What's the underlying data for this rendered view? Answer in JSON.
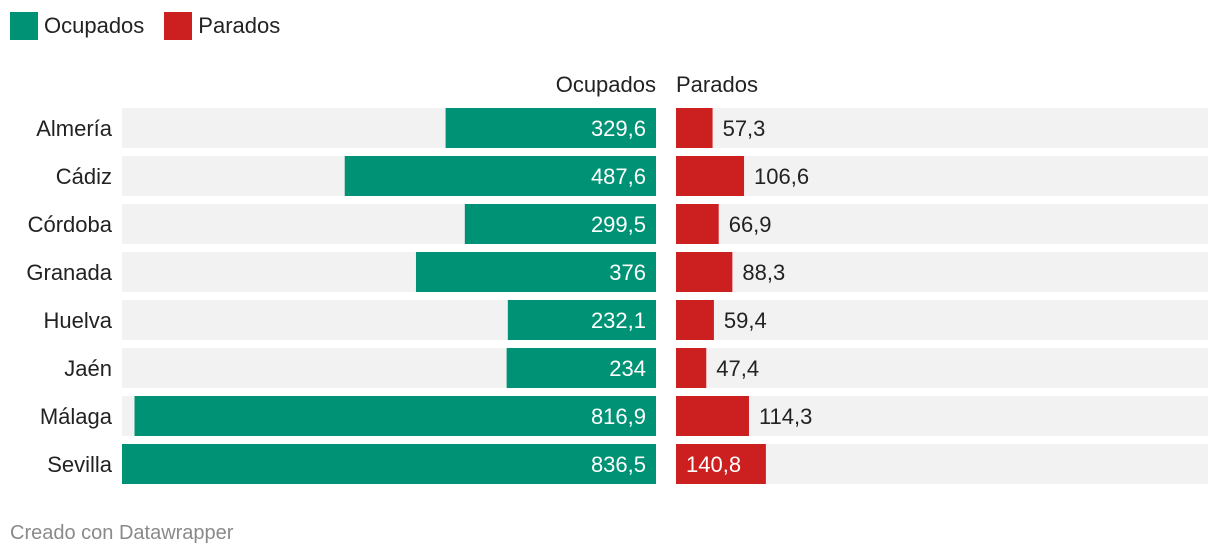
{
  "legend": [
    {
      "label": "Ocupados",
      "color": "#009275"
    },
    {
      "label": "Parados",
      "color": "#cc1f20"
    }
  ],
  "footer": {
    "credit": "Creado con Datawrapper"
  },
  "chart_data": {
    "type": "bar",
    "orientation": "horizontal",
    "categories": [
      "Almería",
      "Cádiz",
      "Córdoba",
      "Granada",
      "Huelva",
      "Jaén",
      "Málaga",
      "Sevilla"
    ],
    "series": [
      {
        "name": "Ocupados",
        "color": "#009275",
        "values": [
          329.6,
          487.6,
          299.5,
          376,
          232.1,
          234,
          816.9,
          836.5
        ],
        "labels": [
          "329,6",
          "487,6",
          "299,5",
          "376",
          "232,1",
          "234",
          "816,9",
          "836,5"
        ],
        "xlim": [
          0,
          836.5
        ],
        "direction": "right-to-left"
      },
      {
        "name": "Parados",
        "color": "#cc1f20",
        "values": [
          57.3,
          106.6,
          66.9,
          88.3,
          59.4,
          47.4,
          114.3,
          140.8
        ],
        "labels": [
          "57,3",
          "106,6",
          "66,9",
          "88,3",
          "59,4",
          "47,4",
          "114,3",
          "140,8"
        ],
        "xlim": [
          0,
          836.5
        ],
        "direction": "left-to-right"
      }
    ],
    "background_track_color": "#f2f2f2",
    "legend_position": "top-left",
    "grid": false
  }
}
